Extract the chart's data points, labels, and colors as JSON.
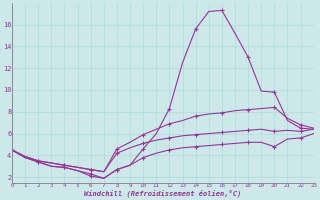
{
  "xlabel": "Windchill (Refroidissement éolien,°C)",
  "bg_color": "#cce8e8",
  "line_color": "#993399",
  "grid_color": "#aadddd",
  "xlim": [
    0,
    23
  ],
  "ylim": [
    1.5,
    18.0
  ],
  "yticks": [
    2,
    4,
    6,
    8,
    10,
    12,
    14,
    16
  ],
  "xticks": [
    0,
    1,
    2,
    3,
    4,
    5,
    6,
    7,
    8,
    9,
    10,
    11,
    12,
    13,
    14,
    15,
    16,
    17,
    18,
    19,
    20,
    21,
    22,
    23
  ],
  "series": [
    [
      4.5,
      3.8,
      3.4,
      3.0,
      2.9,
      2.6,
      2.1,
      1.9,
      2.7,
      3.1,
      4.6,
      6.0,
      8.3,
      12.5,
      15.6,
      17.2,
      17.3,
      15.2,
      13.0,
      9.9,
      9.8,
      7.2,
      6.5,
      6.4
    ],
    [
      4.5,
      3.9,
      3.5,
      3.3,
      3.1,
      2.9,
      2.7,
      2.5,
      4.6,
      5.2,
      5.9,
      6.4,
      6.9,
      7.2,
      7.6,
      7.8,
      7.9,
      8.1,
      8.2,
      8.3,
      8.4,
      7.4,
      6.8,
      6.5
    ],
    [
      4.5,
      3.9,
      3.5,
      3.3,
      3.1,
      2.9,
      2.7,
      2.5,
      4.2,
      4.7,
      5.1,
      5.4,
      5.6,
      5.8,
      5.9,
      6.0,
      6.1,
      6.2,
      6.3,
      6.4,
      6.2,
      6.3,
      6.2,
      6.4
    ],
    [
      4.5,
      3.8,
      3.4,
      3.0,
      2.9,
      2.6,
      2.3,
      1.9,
      2.7,
      3.1,
      3.8,
      4.2,
      4.5,
      4.7,
      4.8,
      4.9,
      5.0,
      5.1,
      5.2,
      5.2,
      4.8,
      5.5,
      5.6,
      6.0
    ]
  ]
}
